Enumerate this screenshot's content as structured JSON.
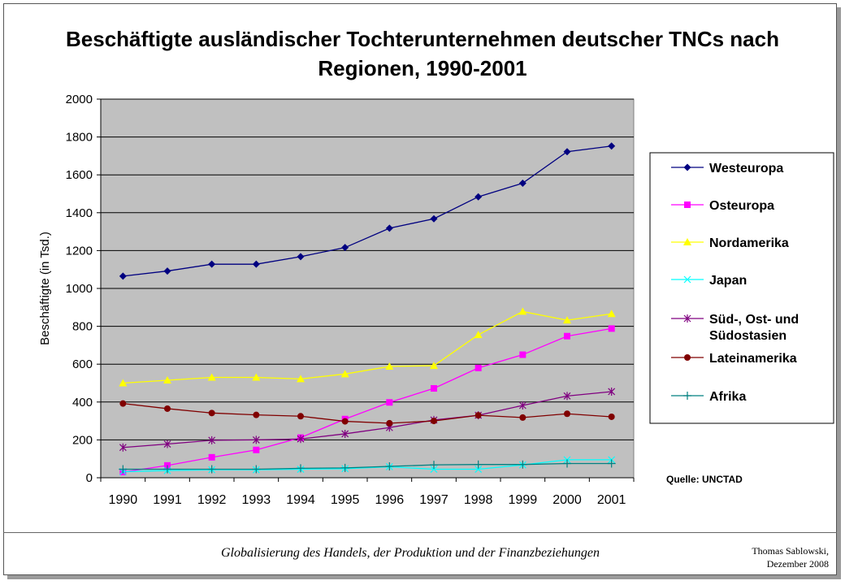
{
  "chart_data": {
    "type": "line",
    "title": "Beschäftigte ausländischer Tochterunternehmen deutscher TNCs nach Regionen, 1990-2001",
    "xlabel": "",
    "ylabel": "Beschäftigte (in Tsd.)",
    "ylim": [
      0,
      2000
    ],
    "yticks": [
      "0",
      "200",
      "400",
      "600",
      "800",
      "1000",
      "1200",
      "1400",
      "1600",
      "1800",
      "2000"
    ],
    "categories": [
      "1990",
      "1991",
      "1992",
      "1993",
      "1994",
      "1995",
      "1996",
      "1997",
      "1998",
      "1999",
      "2000",
      "2001"
    ],
    "grid": true,
    "legend_position": "right",
    "plot_background": "#c0c0c0",
    "series": [
      {
        "name": "Westeuropa",
        "color": "#000080",
        "marker": "diamond",
        "values": [
          1065,
          1092,
          1128,
          1128,
          1168,
          1216,
          1318,
          1368,
          1484,
          1556,
          1722,
          1752
        ]
      },
      {
        "name": "Osteuropa",
        "color": "#ff00ff",
        "marker": "square",
        "values": [
          30,
          65,
          108,
          147,
          212,
          310,
          398,
          472,
          580,
          650,
          748,
          788
        ]
      },
      {
        "name": "Nordamerika",
        "color": "#ffff00",
        "marker": "triangle",
        "values": [
          500,
          515,
          530,
          530,
          522,
          548,
          588,
          592,
          755,
          878,
          832,
          866
        ]
      },
      {
        "name": "Japan",
        "color": "#00ffff",
        "marker": "x",
        "values": [
          32,
          38,
          42,
          42,
          45,
          48,
          58,
          45,
          45,
          68,
          95,
          95
        ]
      },
      {
        "name": "Süd-, Ost- und Südostasien",
        "color": "#800080",
        "marker": "star",
        "values": [
          160,
          178,
          198,
          200,
          205,
          232,
          265,
          305,
          330,
          382,
          432,
          455
        ]
      },
      {
        "name": "Lateinamerika",
        "color": "#800000",
        "marker": "circle",
        "values": [
          392,
          365,
          342,
          332,
          325,
          298,
          288,
          300,
          330,
          318,
          338,
          322
        ]
      },
      {
        "name": "Afrika",
        "color": "#008080",
        "marker": "plus",
        "values": [
          45,
          45,
          45,
          45,
          50,
          52,
          60,
          68,
          70,
          70,
          75,
          75
        ]
      }
    ],
    "annotation": "Quelle: UNCTAD"
  },
  "legend": {
    "westeuropa": "Westeuropa",
    "osteuropa": "Osteuropa",
    "nordamerika": "Nordamerika",
    "japan": "Japan",
    "asien_line1": "Süd-, Ost- und",
    "asien_line2": "Südostasien",
    "lateinamerika": "Lateinamerika",
    "afrika": "Afrika"
  },
  "footer": {
    "subject": "Globalisierung des Handels, der Produktion und der Finanzbeziehungen",
    "author": "Thomas Sablowski,",
    "date": "Dezember 2008"
  }
}
